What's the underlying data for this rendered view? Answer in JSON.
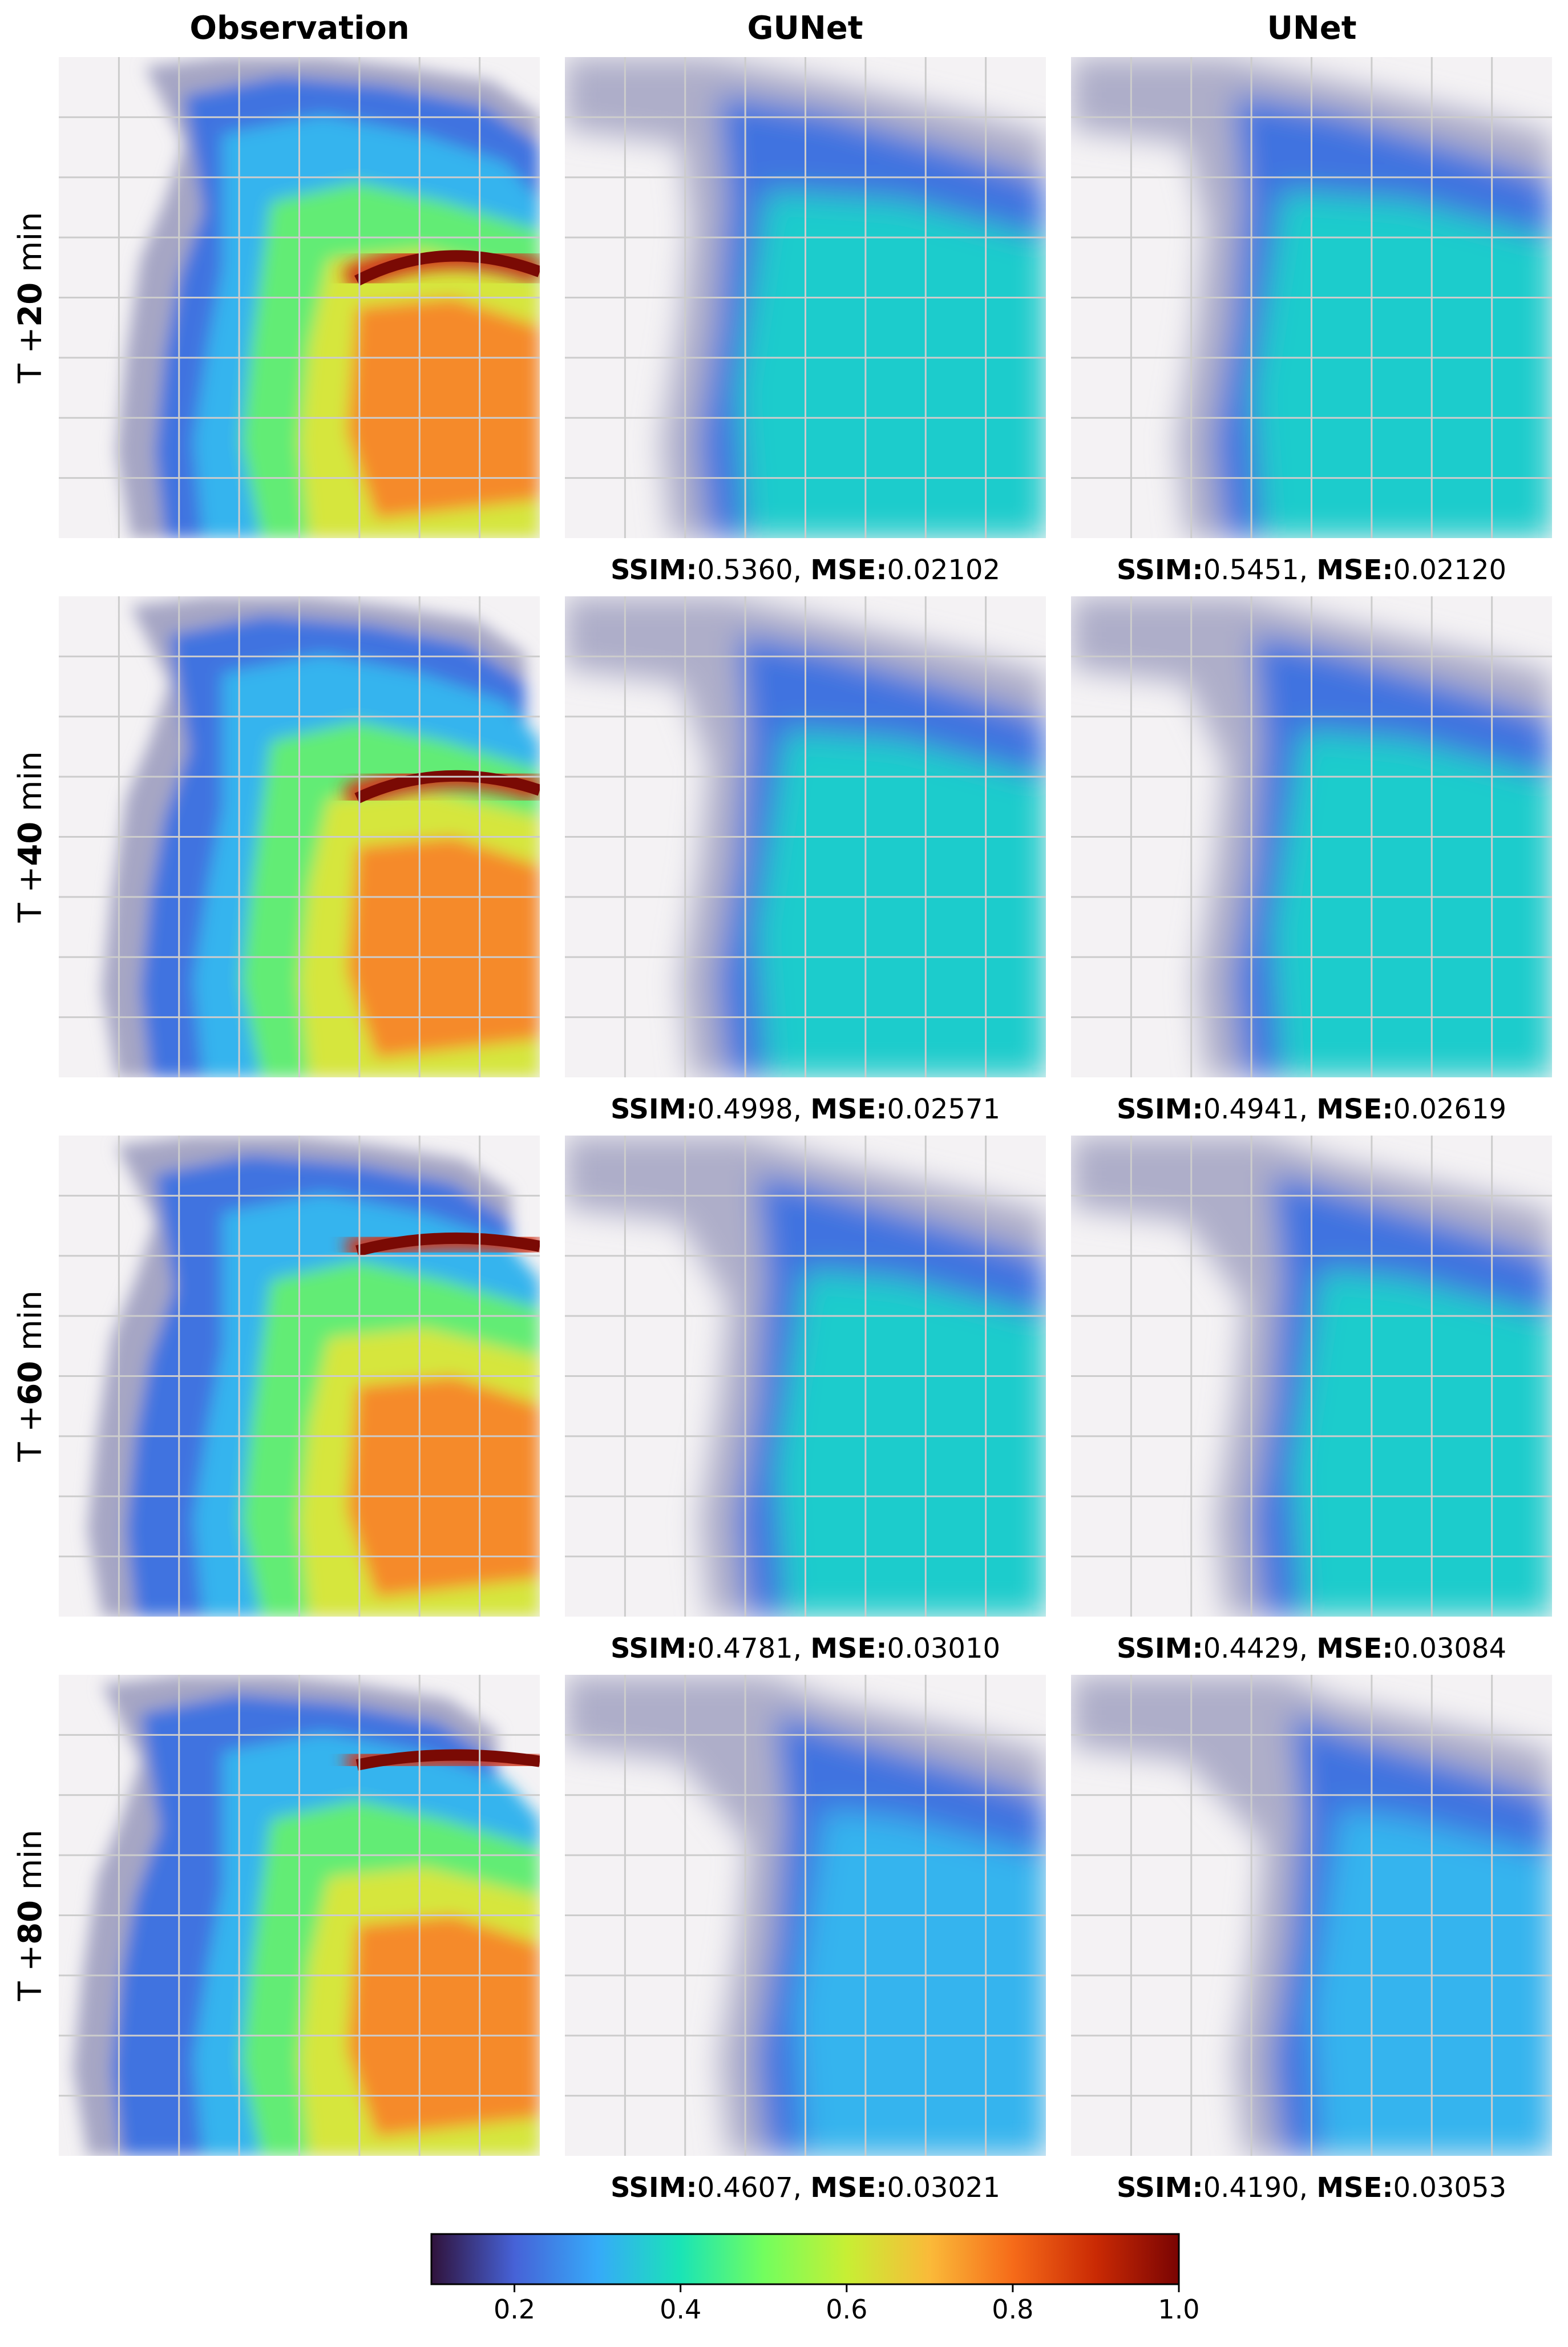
{
  "chart_data": {
    "type": "heatmap",
    "description_type": "radar nowcasting panel grid",
    "columns": [
      "Observation",
      "GUNet",
      "UNet"
    ],
    "rows": [
      {
        "label_prefix": "T +",
        "lead": "20",
        "label_suffix": "min",
        "metrics": {
          "GUNet": {
            "ssim": "0.5360",
            "mse": "0.02102"
          },
          "UNet": {
            "ssim": "0.5451",
            "mse": "0.02120"
          }
        }
      },
      {
        "label_prefix": "T +",
        "lead": "40",
        "label_suffix": "min",
        "metrics": {
          "GUNet": {
            "ssim": "0.4998",
            "mse": "0.02571"
          },
          "UNet": {
            "ssim": "0.4941",
            "mse": "0.02619"
          }
        }
      },
      {
        "label_prefix": "T +",
        "lead": "60",
        "label_suffix": "min",
        "metrics": {
          "GUNet": {
            "ssim": "0.4781",
            "mse": "0.03010"
          },
          "UNet": {
            "ssim": "0.4429",
            "mse": "0.03084"
          }
        }
      },
      {
        "label_prefix": "T +",
        "lead": "80",
        "label_suffix": "min",
        "metrics": {
          "GUNet": {
            "ssim": "0.4607",
            "mse": "0.03021"
          },
          "UNet": {
            "ssim": "0.4190",
            "mse": "0.03053"
          }
        }
      }
    ],
    "metric_labels": {
      "ssim": "SSIM",
      "mse": "MSE"
    },
    "colorbar": {
      "colormap": "turbo",
      "range": [
        0.1,
        1.0
      ],
      "ticks": [
        "0.2",
        "0.4",
        "0.6",
        "0.8",
        "1.0"
      ],
      "tick_values": [
        0.2,
        0.4,
        0.6,
        0.8,
        1.0
      ],
      "stops": [
        "#30123b",
        "#4662d7",
        "#36aaf9",
        "#1ae4b6",
        "#72fe5e",
        "#c7ef34",
        "#faba39",
        "#f66b19",
        "#ca2a04",
        "#7a0403"
      ]
    },
    "grid": true,
    "background_color": "#f4f2f4",
    "grid_color": "#cccccc",
    "palette": {
      "low": "#a6a6c4",
      "blue": "#3f73e0",
      "cyan": "#34b4ee",
      "teal": "#1ccccc",
      "green": "#62ec74",
      "yellow": "#d6e63c",
      "orange": "#f58a2c",
      "red": "#d0341a",
      "darkred": "#7a0a04"
    }
  }
}
